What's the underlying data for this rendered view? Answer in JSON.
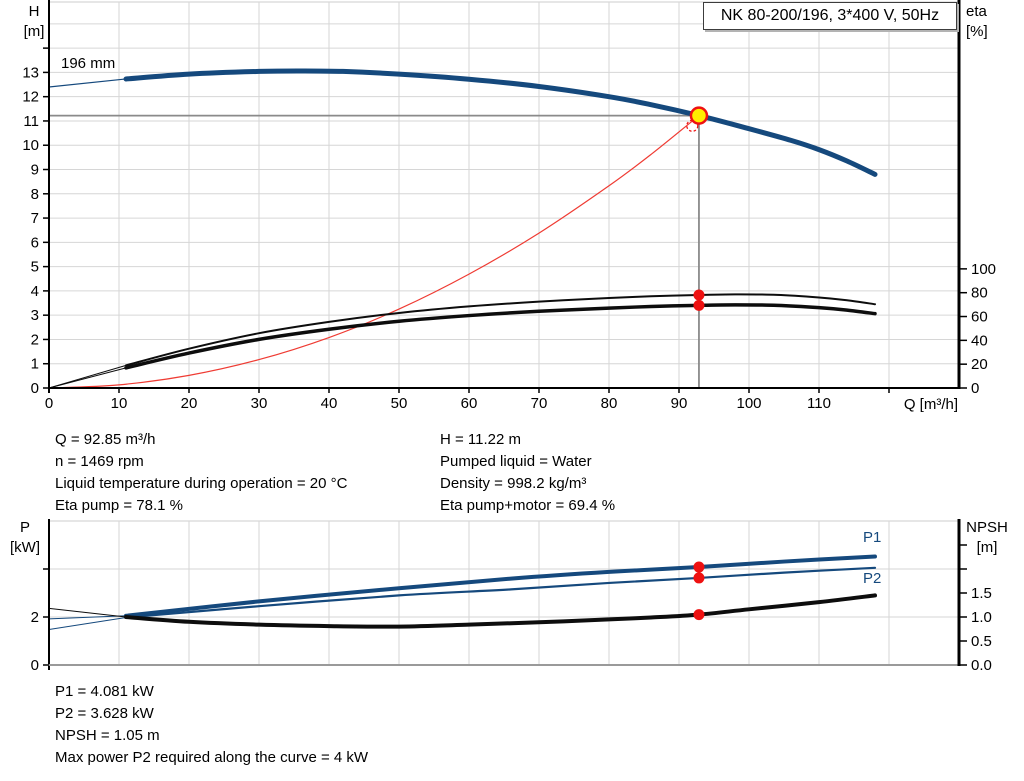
{
  "title_box": {
    "label": "NK 80-200/196, 3*400 V, 50Hz"
  },
  "colors": {
    "blue": "#15497d",
    "black": "#0d0d0d",
    "red": "#ef3b33",
    "dot_red": "#ee1111",
    "duty_yellow": "#ffed00",
    "grid": "#d6d6d6",
    "guide_gray": "#8a8a8a",
    "axis": "#000000",
    "border_gray": "#9a9a9a"
  },
  "curve_labels": {
    "impeller": "196 mm",
    "p1": "P1",
    "p2": "P2"
  },
  "axis_units": {
    "h": [
      "H",
      "[m]"
    ],
    "eta": [
      "eta",
      "[%]"
    ],
    "p": [
      "P",
      "[kW]"
    ],
    "npsh": [
      "NPSH",
      "[m]"
    ],
    "q": "Q [m³/h]"
  },
  "info_top_left": {
    "lines": [
      "Q = 92.85 m³/h",
      "n = 1469 rpm",
      "Liquid temperature during operation = 20 °C",
      "Eta pump = 78.1 %"
    ]
  },
  "info_top_right": {
    "lines": [
      "H = 11.22 m",
      "Pumped liquid = Water",
      "Density = 998.2 kg/m³",
      "Eta pump+motor = 69.4 %"
    ]
  },
  "info_bottom": {
    "lines": [
      "P1 = 4.081 kW",
      "P2 = 3.628 kW",
      "NPSH = 1.05 m",
      "Max power P2 required along the curve = 4 kW"
    ]
  },
  "chart_data": [
    {
      "id": "qh-eta-chart",
      "type": "line",
      "title": "NK 80-200/196, 3*400 V, 50Hz",
      "xlabel": "Q [m³/h]",
      "ylabel_left": "H [m]",
      "ylabel_right": "eta [%]",
      "axes": {
        "Q": {
          "min": 0,
          "max": 130
        },
        "H": {
          "min": 0,
          "max": 15.9
        },
        "eta": {
          "min": 0,
          "max": 324
        }
      },
      "grid_x": [
        10,
        20,
        30,
        40,
        50,
        60,
        70,
        80,
        90,
        100,
        110,
        120
      ],
      "grid_y": [
        1,
        2,
        3,
        4,
        5,
        6,
        7,
        8,
        9,
        10,
        11,
        12,
        13,
        14,
        15
      ],
      "x_ticks": {
        "values": [
          0,
          10,
          20,
          30,
          40,
          50,
          60,
          70,
          80,
          90,
          100,
          110,
          120
        ],
        "labels": [
          "0",
          "10",
          "20",
          "30",
          "40",
          "50",
          "60",
          "70",
          "80",
          "90",
          "100",
          "110",
          ""
        ]
      },
      "left_ticks": {
        "values": [
          0,
          1,
          2,
          3,
          4,
          5,
          6,
          7,
          8,
          9,
          10,
          11,
          12,
          13,
          14
        ],
        "labels": [
          "0",
          "1",
          "2",
          "3",
          "4",
          "5",
          "6",
          "7",
          "8",
          "9",
          "10",
          "11",
          "12",
          "13",
          ""
        ]
      },
      "right_ticks": {
        "values": [
          0,
          20,
          40,
          60,
          80,
          100
        ],
        "labels": [
          "0",
          "20",
          "40",
          "60",
          "80",
          "100"
        ]
      },
      "series": [
        {
          "name": "qh-thin",
          "axis": "H",
          "color": "blue",
          "w": 1.2,
          "points": [
            [
              0,
              12.4
            ],
            [
              11,
              12.73
            ]
          ]
        },
        {
          "name": "qh",
          "axis": "H",
          "color": "blue",
          "w": 5,
          "points": [
            [
              11,
              12.73
            ],
            [
              20,
              12.93
            ],
            [
              30,
              13.04
            ],
            [
              36,
              13.06
            ],
            [
              42,
              13.04
            ],
            [
              50,
              12.93
            ],
            [
              60,
              12.72
            ],
            [
              70,
              12.42
            ],
            [
              80,
              12.0
            ],
            [
              86,
              11.67
            ],
            [
              92.85,
              11.22
            ],
            [
              100,
              10.68
            ],
            [
              106,
              10.2
            ],
            [
              110,
              9.82
            ],
            [
              114,
              9.35
            ],
            [
              118,
              8.8
            ]
          ]
        },
        {
          "name": "system-curve",
          "axis": "H",
          "color": "red",
          "w": 1.2,
          "points": [
            [
              0,
              0
            ],
            [
              10,
              0.13
            ],
            [
              20,
              0.52
            ],
            [
              30,
              1.17
            ],
            [
              40,
              2.08
            ],
            [
              50,
              3.25
            ],
            [
              60,
              4.69
            ],
            [
              70,
              6.38
            ],
            [
              80,
              8.33
            ],
            [
              86,
              9.62
            ],
            [
              92.85,
              11.22
            ]
          ]
        },
        {
          "name": "eta-pump-thin",
          "axis": "eta",
          "color": "black",
          "w": 1,
          "points": [
            [
              0,
              0
            ],
            [
              11,
              19
            ]
          ]
        },
        {
          "name": "eta-pump-motor-thin",
          "axis": "eta",
          "color": "black",
          "w": 1,
          "points": [
            [
              0,
              0
            ],
            [
              11,
              16.9
            ]
          ]
        },
        {
          "name": "eta-pump",
          "axis": "eta",
          "color": "black",
          "w": 2,
          "points": [
            [
              11,
              19
            ],
            [
              20,
              33
            ],
            [
              30,
              46
            ],
            [
              40,
              55.5
            ],
            [
              50,
              63
            ],
            [
              60,
              68.5
            ],
            [
              70,
              72.5
            ],
            [
              80,
              75.5
            ],
            [
              86,
              77
            ],
            [
              92.85,
              78.1
            ],
            [
              98,
              78.6
            ],
            [
              104,
              78.2
            ],
            [
              110,
              76
            ],
            [
              114,
              73.7
            ],
            [
              118,
              70.3
            ]
          ]
        },
        {
          "name": "eta-pump-motor",
          "axis": "eta",
          "color": "black",
          "w": 3.5,
          "points": [
            [
              11,
              16.9
            ],
            [
              20,
              29.3
            ],
            [
              30,
              40.8
            ],
            [
              40,
              49.3
            ],
            [
              50,
              56
            ],
            [
              60,
              60.8
            ],
            [
              70,
              64.4
            ],
            [
              80,
              67
            ],
            [
              86,
              68.4
            ],
            [
              92.85,
              69.4
            ],
            [
              98,
              69.8
            ],
            [
              104,
              69.4
            ],
            [
              110,
              67.5
            ],
            [
              114,
              65.4
            ],
            [
              118,
              62.4
            ]
          ]
        }
      ],
      "duty": {
        "q": 92.85,
        "h": 11.22,
        "requested_q": 91.9,
        "requested_h": 10.8
      },
      "dots": [
        {
          "q": 92.85,
          "axis": "eta",
          "v": 78.1
        },
        {
          "q": 92.85,
          "axis": "eta",
          "v": 69.4
        }
      ]
    },
    {
      "id": "power-npsh-chart",
      "type": "line",
      "xlabel": "",
      "ylabel_left": "P [kW]",
      "ylabel_right": "NPSH [m]",
      "axes": {
        "Q": {
          "min": 0,
          "max": 130
        },
        "P": {
          "min": 0,
          "max": 6
        },
        "NPSH": {
          "min": 0,
          "max": 3
        }
      },
      "grid_x": [
        10,
        20,
        30,
        40,
        50,
        60,
        70,
        80,
        90,
        100,
        110,
        120
      ],
      "grid_y": [
        2,
        4
      ],
      "x_ticks": {
        "values": [],
        "labels": []
      },
      "left_ticks": {
        "values": [
          0,
          2,
          4
        ],
        "labels": [
          "0",
          "2",
          ""
        ]
      },
      "right_ticks": {
        "values": [
          0,
          0.5,
          1.0,
          1.5,
          2.0,
          2.5
        ],
        "labels": [
          "0.0",
          "0.5",
          "1.0",
          "1.5",
          "",
          ""
        ]
      },
      "series": [
        {
          "name": "p1-thin",
          "axis": "P",
          "color": "blue",
          "w": 1,
          "points": [
            [
              0,
              1.92
            ],
            [
              11,
              2.05
            ]
          ]
        },
        {
          "name": "p2-thin",
          "axis": "P",
          "color": "blue",
          "w": 1,
          "points": [
            [
              0,
              1.48
            ],
            [
              11,
              1.98
            ]
          ]
        },
        {
          "name": "npsh-thin",
          "axis": "NPSH",
          "color": "black",
          "w": 1,
          "points": [
            [
              0,
              1.18
            ],
            [
              11,
              1.0
            ]
          ]
        },
        {
          "name": "p1",
          "axis": "P",
          "color": "blue",
          "w": 4,
          "points": [
            [
              11,
              2.05
            ],
            [
              30,
              2.65
            ],
            [
              50,
              3.2
            ],
            [
              66,
              3.6
            ],
            [
              80,
              3.88
            ],
            [
              92.85,
              4.081
            ],
            [
              105,
              4.31
            ],
            [
              118,
              4.52
            ]
          ]
        },
        {
          "name": "p2",
          "axis": "P",
          "color": "blue",
          "w": 2.2,
          "points": [
            [
              11,
              1.98
            ],
            [
              30,
              2.45
            ],
            [
              50,
              2.9
            ],
            [
              66,
              3.15
            ],
            [
              80,
              3.42
            ],
            [
              92.85,
              3.628
            ],
            [
              105,
              3.85
            ],
            [
              118,
              4.05
            ]
          ]
        },
        {
          "name": "npsh",
          "axis": "NPSH",
          "color": "black",
          "w": 4,
          "points": [
            [
              11,
              1.0
            ],
            [
              20,
              0.9
            ],
            [
              30,
              0.84
            ],
            [
              40,
              0.81
            ],
            [
              50,
              0.8
            ],
            [
              60,
              0.84
            ],
            [
              70,
              0.89
            ],
            [
              80,
              0.95
            ],
            [
              86,
              0.99
            ],
            [
              92.85,
              1.05
            ],
            [
              100,
              1.16
            ],
            [
              110,
              1.31
            ],
            [
              118,
              1.45
            ]
          ]
        }
      ],
      "dots": [
        {
          "q": 92.85,
          "axis": "P",
          "v": 4.081
        },
        {
          "q": 92.85,
          "axis": "P",
          "v": 3.628
        },
        {
          "q": 92.85,
          "axis": "NPSH",
          "v": 1.05
        }
      ]
    }
  ]
}
